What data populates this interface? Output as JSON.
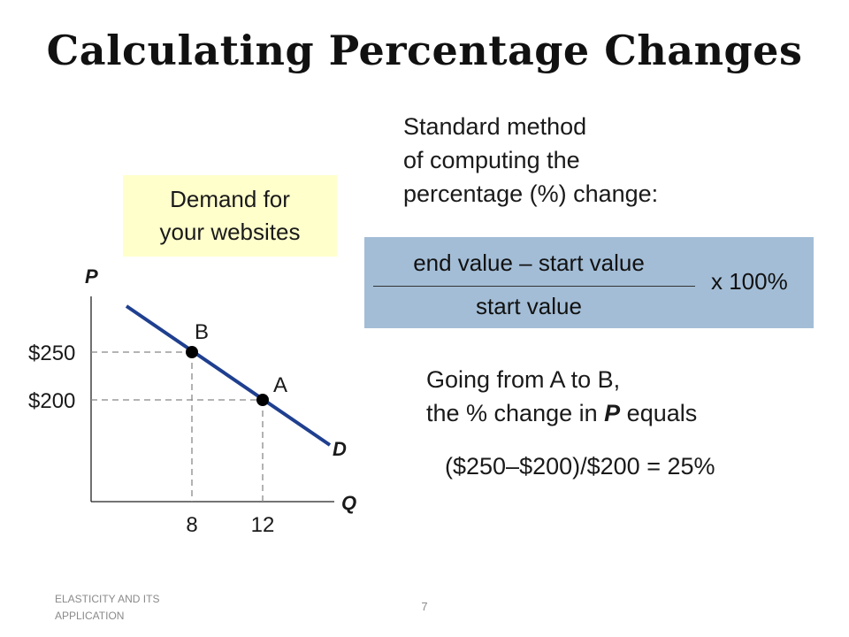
{
  "slide": {
    "title": "Calculating Percentage Changes",
    "standard_method_lines": [
      "Standard method",
      "of computing the",
      "percentage (%) change:"
    ],
    "demand_box_lines": [
      "Demand for",
      "your websites"
    ],
    "formula": {
      "numerator": "end value – start value",
      "denominator": "start value",
      "multiplier": "x 100%"
    },
    "going": {
      "line1": "Going from A to B,",
      "line2_prefix": "the % change in ",
      "line2_var": "P",
      "line2_suffix": " equals"
    },
    "calculation": "($250–$200)/$200 = 25%",
    "footer": {
      "left_line1": "ELASTICITY AND ITS",
      "left_line2": "APPLICATION",
      "page": "7"
    }
  },
  "graph": {
    "y_axis_label": "P",
    "x_axis_label": "Q",
    "curve_label": "D",
    "price_labels": [
      "$250",
      "$200"
    ],
    "quantity_labels": [
      "8",
      "12"
    ],
    "points": [
      {
        "label": "B",
        "q": 8,
        "p": 250
      },
      {
        "label": "A",
        "q": 12,
        "p": 200
      }
    ],
    "colors": {
      "curve": "#1f3f8f",
      "point": "#000000",
      "formula_box": "#a3bdd6",
      "demand_box": "#ffffcc"
    }
  }
}
